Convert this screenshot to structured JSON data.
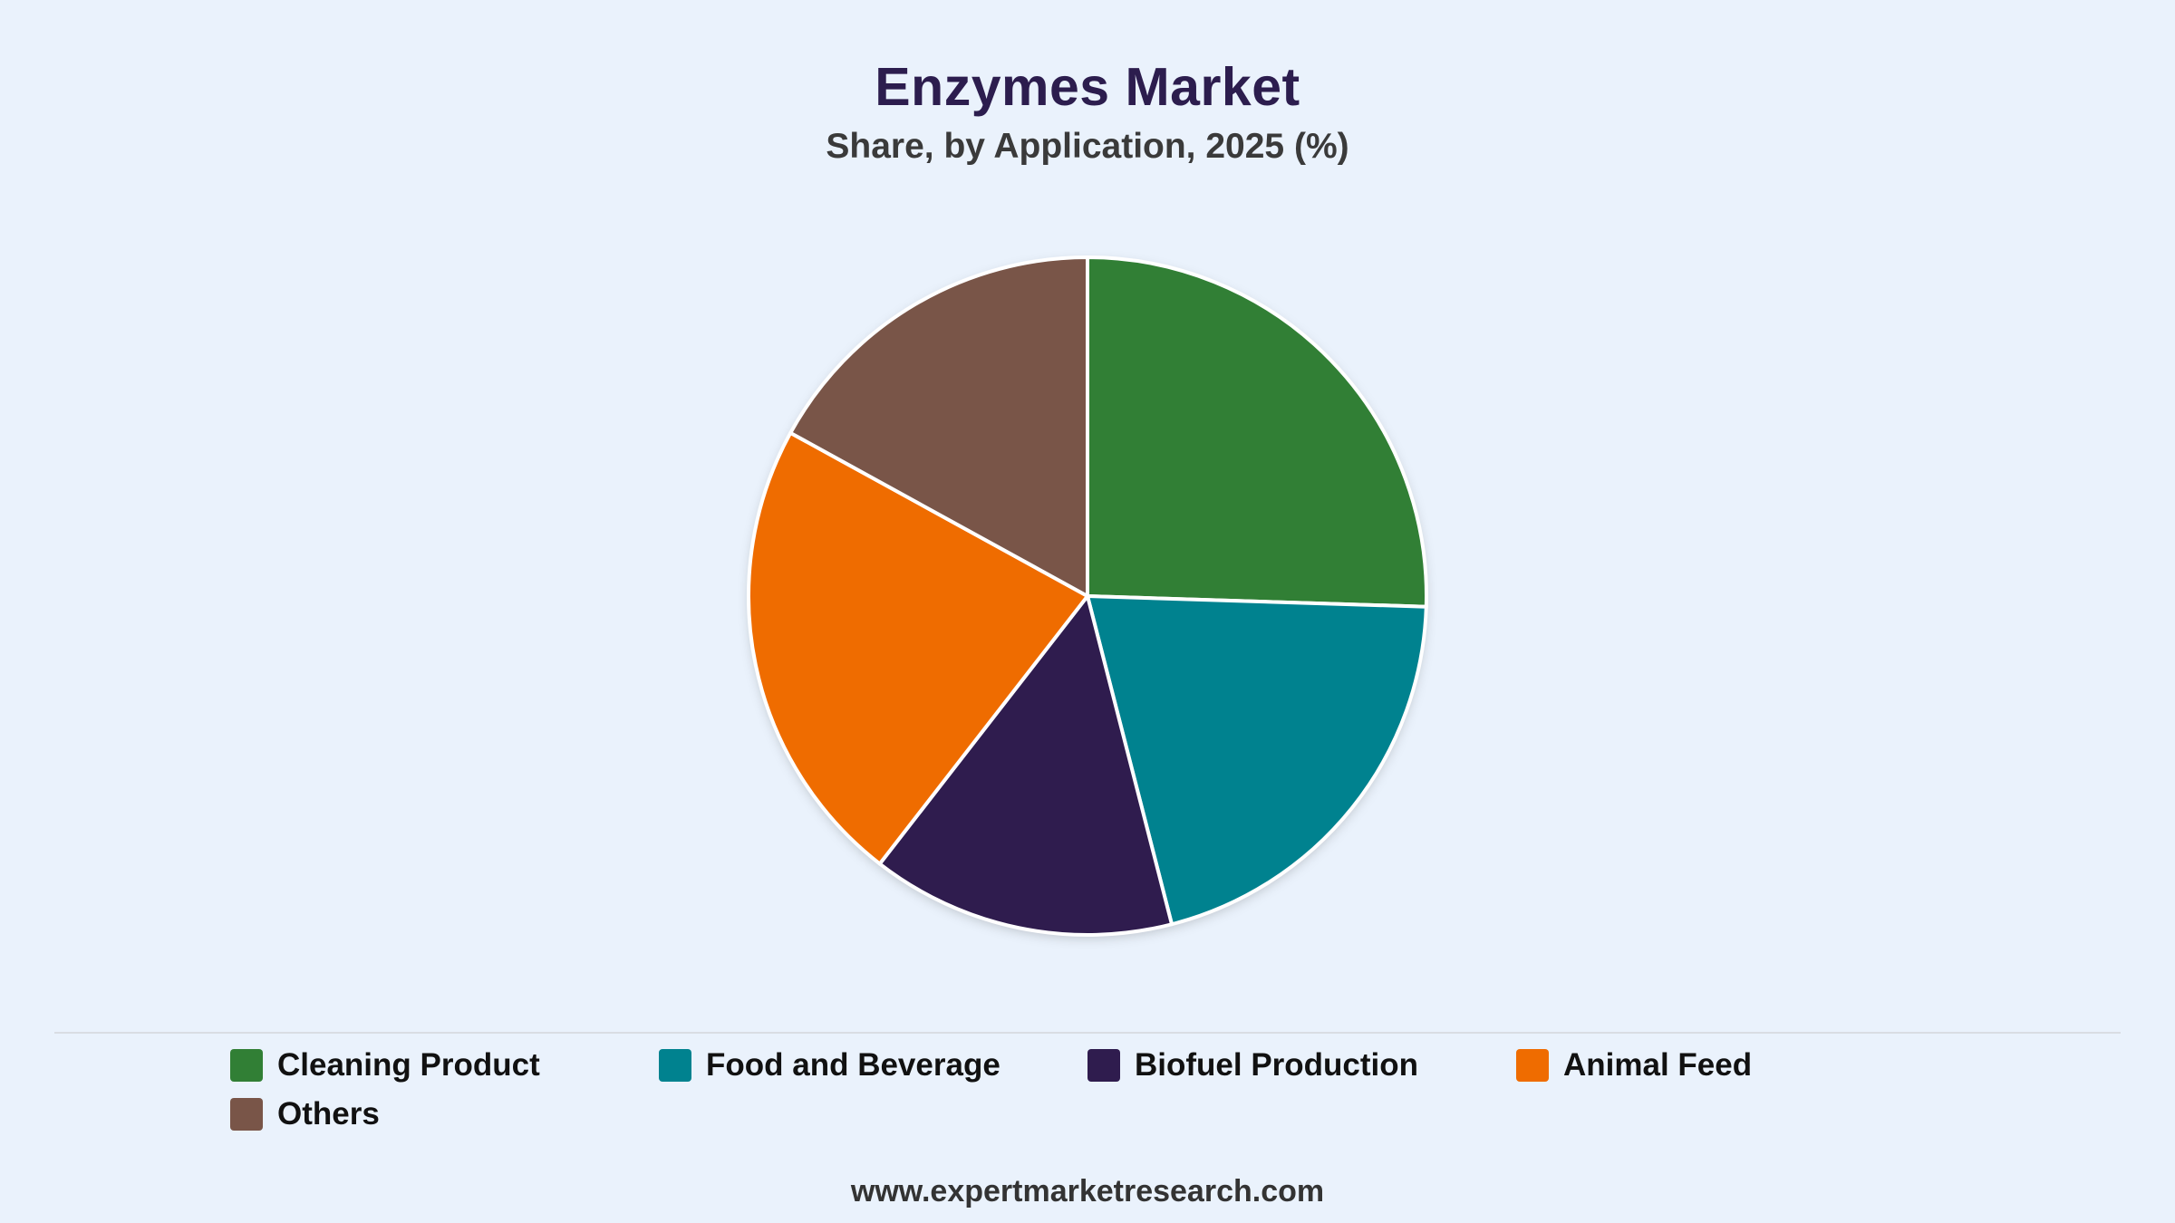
{
  "chart_data": {
    "type": "pie",
    "title": "Enzymes Market",
    "subtitle": "Share, by Application, 2025 (%)",
    "categories": [
      "Cleaning Product",
      "Food and Beverage",
      "Biofuel Production",
      "Animal Feed",
      "Others"
    ],
    "values": [
      25.5,
      20.5,
      14.5,
      22.5,
      17.0
    ],
    "colors": [
      "#317f35",
      "#00828f",
      "#2f1c4e",
      "#ef6c00",
      "#795548"
    ],
    "legend_position": "bottom",
    "start_angle": "12 o'clock",
    "direction": "clockwise"
  },
  "legend": [
    {
      "label": "Cleaning Product",
      "color": "#317f35"
    },
    {
      "label": "Food and Beverage",
      "color": "#00828f"
    },
    {
      "label": "Biofuel Production",
      "color": "#2f1c4e"
    },
    {
      "label": "Animal Feed",
      "color": "#ef6c00"
    },
    {
      "label": "Others",
      "color": "#795548"
    }
  ],
  "footer": {
    "url": "www.expertmarketresearch.com"
  }
}
